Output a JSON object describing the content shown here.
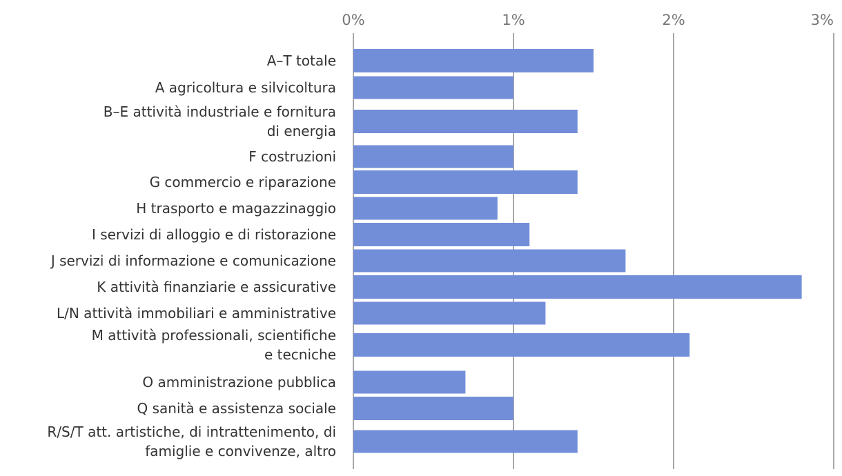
{
  "chart_data": {
    "type": "bar",
    "orientation": "horizontal",
    "title": "",
    "xlabel": "",
    "ylabel": "",
    "xlim": [
      0,
      0.03
    ],
    "x_ticks": [
      {
        "value": 0,
        "label": "0%"
      },
      {
        "value": 0.01,
        "label": "1%"
      },
      {
        "value": 0.02,
        "label": "2%"
      },
      {
        "value": 0.03,
        "label": "3%"
      }
    ],
    "x_axis_position": "top",
    "grid": true,
    "legend": "none",
    "colors": {
      "bar": "#738ed9",
      "grid": "#8c8c8c"
    },
    "categories": [
      [
        "A–T totale"
      ],
      [
        "A agricoltura e silvicoltura"
      ],
      [
        "B–E attività industriale e fornitura",
        "di energia"
      ],
      [
        "F costruzioni"
      ],
      [
        "G commercio e riparazione"
      ],
      [
        "H trasporto e magazzinaggio"
      ],
      [
        "I servizi di alloggio e di ristorazione"
      ],
      [
        "J servizi di informazione e comunicazione"
      ],
      [
        "K attività finanziarie e assicurative"
      ],
      [
        "L/N attività immobiliari e amministrative"
      ],
      [
        "M attività professionali, scientifiche",
        "e tecniche"
      ],
      [
        "O amministrazione pubblica"
      ],
      [
        "Q sanità e assistenza sociale"
      ],
      [
        "R/S/T att. artistiche, di intrattenimento, di",
        "famiglie e convivenze, altro"
      ]
    ],
    "values": [
      0.015,
      0.01,
      0.014,
      0.01,
      0.014,
      0.009,
      0.011,
      0.017,
      0.028,
      0.012,
      0.021,
      0.007,
      0.01,
      0.014
    ]
  }
}
